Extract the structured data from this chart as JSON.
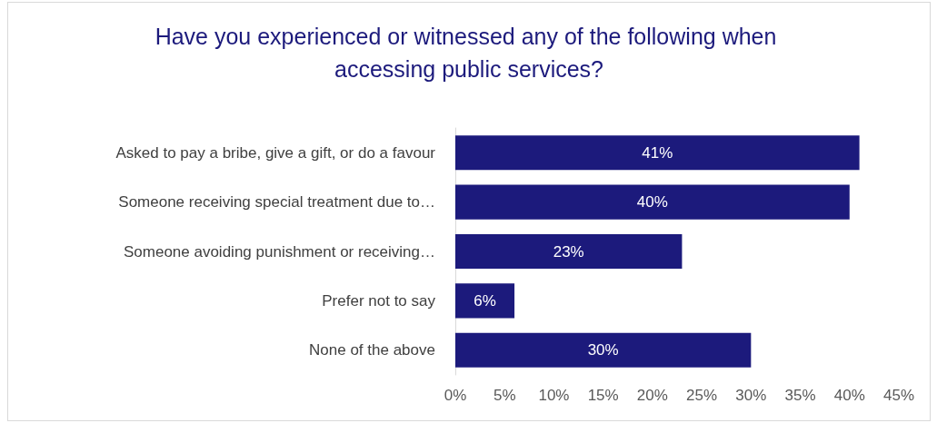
{
  "chart_data": {
    "type": "bar",
    "orientation": "horizontal",
    "title": "Have you experienced or witnessed any of the following when accessing public services?",
    "categories": [
      "Asked to pay a bribe, give a gift, or do a favour",
      "Someone receiving special treatment due to…",
      "Someone avoiding punishment or receiving…",
      "Prefer not to say",
      "None of the above"
    ],
    "values": [
      41,
      40,
      23,
      6,
      30
    ],
    "value_labels": [
      "41%",
      "40%",
      "23%",
      "6%",
      "30%"
    ],
    "color": "#1c1a7c",
    "xlim": [
      0,
      45
    ],
    "xticks": [
      {
        "value": 0,
        "label": "0%"
      },
      {
        "value": 5,
        "label": "5%"
      },
      {
        "value": 10,
        "label": "10%"
      },
      {
        "value": 15,
        "label": "15%"
      },
      {
        "value": 20,
        "label": "20%"
      },
      {
        "value": 25,
        "label": "25%"
      },
      {
        "value": 30,
        "label": "30%"
      },
      {
        "value": 35,
        "label": "35%"
      },
      {
        "value": 40,
        "label": "40%"
      },
      {
        "value": 45,
        "label": "45%"
      }
    ],
    "grid": false
  }
}
